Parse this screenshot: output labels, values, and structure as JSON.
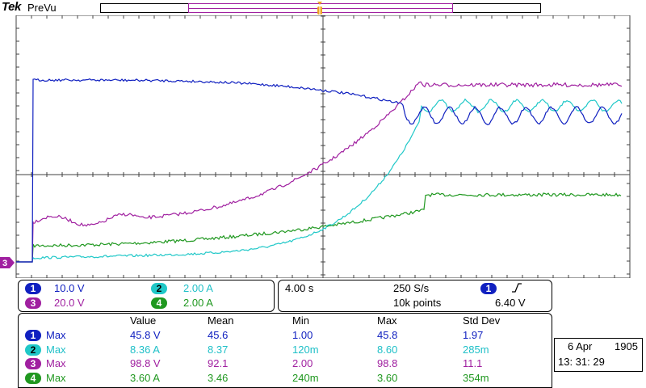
{
  "header": {
    "brand": "Tek",
    "mode": "PreVu"
  },
  "colors": {
    "ch1": "#1020c0",
    "ch2": "#20c8c8",
    "ch3": "#a020a0",
    "ch4": "#209820",
    "grid": "#404040"
  },
  "channels": {
    "ch1": {
      "num": "1",
      "scale": "10.0 V"
    },
    "ch2": {
      "num": "2",
      "scale": "2.00 A"
    },
    "ch3": {
      "num": "3",
      "scale": "20.0 V"
    },
    "ch4": {
      "num": "4",
      "scale": "2.00 A"
    }
  },
  "ground_marker": "3",
  "timebase": {
    "time_div": "4.00 s",
    "sample_rate": "250 S/s",
    "record_length": "10k points",
    "trigger_source": "1",
    "trigger_slope_icon": "rising-edge-icon",
    "trigger_level": "6.40 V"
  },
  "measurements": {
    "headers": {
      "value": "Value",
      "mean": "Mean",
      "min": "Min",
      "max": "Max",
      "std": "Std Dev"
    },
    "rows": [
      {
        "num": "1",
        "type": "Max",
        "value": "45.8 V",
        "mean": "45.6",
        "min": "1.00",
        "max": "45.8",
        "std": "1.97"
      },
      {
        "num": "2",
        "type": "Max",
        "value": "8.36 A",
        "mean": "8.37",
        "min": "120m",
        "max": "8.60",
        "std": "285m"
      },
      {
        "num": "3",
        "type": "Max",
        "value": "98.8 V",
        "mean": "92.1",
        "min": "2.00",
        "max": "98.8",
        "std": "11.1"
      },
      {
        "num": "4",
        "type": "Max",
        "value": "3.60 A",
        "mean": "3.46",
        "min": "240m",
        "max": "3.60",
        "std": "354m"
      }
    ]
  },
  "datetime": {
    "date": "6 Apr",
    "year": "1905",
    "time": "13: 31: 29"
  }
}
